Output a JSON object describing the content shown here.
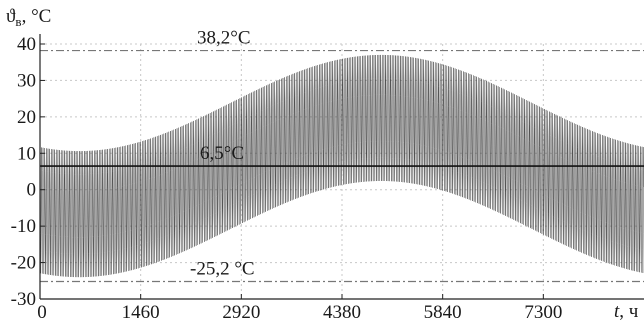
{
  "chart_data": {
    "type": "line",
    "title": "",
    "ylabel": "ϑ",
    "ylabel_sub": "в",
    "yunit": ", °C",
    "xlabel": "t",
    "xunit": ", ч",
    "xlim": [
      0,
      8760
    ],
    "ylim": [
      -30,
      40
    ],
    "xticks": [
      0,
      1460,
      2920,
      4380,
      5840,
      7300
    ],
    "xtick_labels": [
      "0",
      "1460",
      "2920",
      "4380",
      "5840",
      "7300"
    ],
    "yticks": [
      -30,
      -20,
      -10,
      0,
      10,
      20,
      30,
      40
    ],
    "ytick_labels": [
      "-30",
      "-20",
      "-10",
      "0",
      "10",
      "20",
      "30",
      "40"
    ],
    "grid": true,
    "series": [
      {
        "type": "oscillating-band",
        "period_hours": 24,
        "mean": 6.5,
        "daily_amplitude": 17.5,
        "annual_amplitude": 13.2,
        "peak_x": 4950,
        "color": "#3a3a3a"
      }
    ],
    "reference_lines": [
      {
        "y": 38.2,
        "label": "38,2°C",
        "style": "dash-dot",
        "color": "#777777"
      },
      {
        "y": 6.5,
        "label": "6,5°C",
        "style": "solid",
        "color": "#111111"
      },
      {
        "y": -25.2,
        "label": "-25,2 °C",
        "style": "dash-dot",
        "color": "#777777"
      }
    ]
  }
}
